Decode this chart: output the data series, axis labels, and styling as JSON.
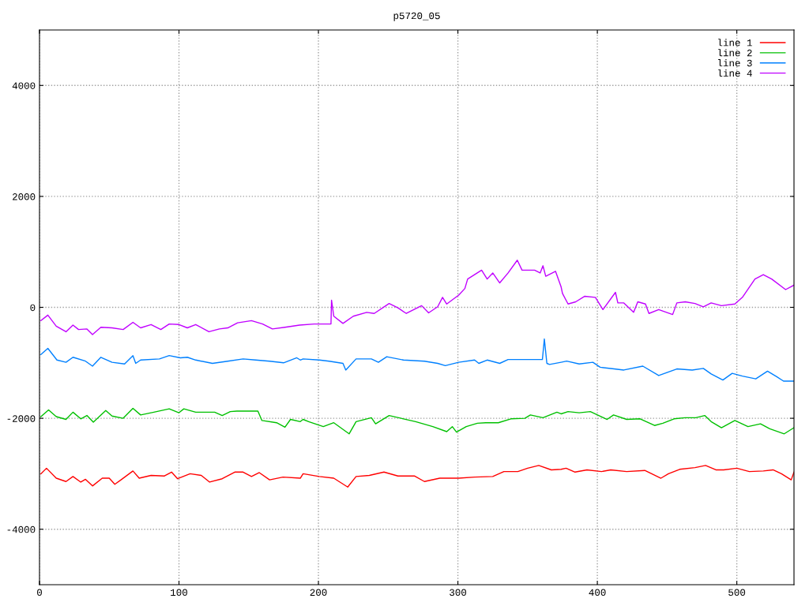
{
  "chart_data": {
    "type": "line",
    "title": "p5720_05",
    "xlim": [
      0,
      541
    ],
    "ylim": [
      -5000,
      5000
    ],
    "xticks": [
      0,
      100,
      200,
      300,
      400,
      500
    ],
    "yticks": [
      -4000,
      -2000,
      0,
      2000,
      4000
    ],
    "grid": true,
    "legend": "top right",
    "line_style": "solid",
    "marker": "none",
    "series": [
      {
        "name": "line 1",
        "color": "#ff0000",
        "x": [
          1,
          5,
          12,
          19,
          24,
          29.6,
          33,
          38,
          45,
          50,
          54,
          59,
          67,
          71.5,
          80,
          89.6,
          94.7,
          99,
          108,
          116,
          122,
          131,
          140,
          146,
          152,
          157.6,
          165,
          174.6,
          187,
          189,
          200.6,
          211,
          221,
          227,
          236.5,
          247,
          257,
          268.8,
          276,
          287,
          300.6,
          312,
          325,
          333,
          343,
          350,
          358,
          367,
          374,
          377.6,
          384,
          392.6,
          403,
          409.6,
          421,
          434,
          445.6,
          451,
          459,
          470,
          477.6,
          485,
          490.6,
          500,
          509,
          519,
          526,
          532,
          539,
          541
        ],
        "values": [
          -3000,
          -2900,
          -3080,
          -3140,
          -3050,
          -3150,
          -3100,
          -3220,
          -3080,
          -3080,
          -3190,
          -3100,
          -2950,
          -3080,
          -3030,
          -3040,
          -2970,
          -3090,
          -3000,
          -3030,
          -3150,
          -3090,
          -2970,
          -2970,
          -3050,
          -2980,
          -3110,
          -3060,
          -3080,
          -3000,
          -3050,
          -3080,
          -3240,
          -3050,
          -3030,
          -2970,
          -3040,
          -3040,
          -3140,
          -3080,
          -3080,
          -3060,
          -3050,
          -2960,
          -2960,
          -2900,
          -2850,
          -2930,
          -2920,
          -2900,
          -2970,
          -2930,
          -2960,
          -2930,
          -2960,
          -2940,
          -3080,
          -3000,
          -2920,
          -2890,
          -2850,
          -2930,
          -2930,
          -2900,
          -2960,
          -2950,
          -2930,
          -3000,
          -3110,
          -2970
        ]
      },
      {
        "name": "line 2",
        "color": "#00c000",
        "x": [
          1,
          6.5,
          12,
          19,
          24,
          29.6,
          34,
          38.6,
          47.5,
          52,
          60,
          67,
          72.5,
          82,
          93,
          100,
          103.5,
          112,
          125.6,
          131,
          136.8,
          141.5,
          156.6,
          159.5,
          170,
          176,
          180,
          187,
          189,
          193,
          203.5,
          211,
          222,
          227,
          238,
          241,
          250.7,
          261,
          269.7,
          282,
          292,
          296,
          299,
          306,
          314,
          320,
          329,
          338,
          348,
          352,
          361,
          371,
          374,
          379,
          387,
          395,
          407,
          411.6,
          421,
          430.7,
          441,
          447,
          455,
          463,
          470.6,
          477,
          481.6,
          489,
          498.6,
          508,
          517,
          523.6,
          534,
          541
        ],
        "values": [
          -1970,
          -1850,
          -1970,
          -2020,
          -1890,
          -2010,
          -1950,
          -2070,
          -1860,
          -1960,
          -2000,
          -1820,
          -1940,
          -1890,
          -1830,
          -1900,
          -1830,
          -1890,
          -1890,
          -1950,
          -1880,
          -1870,
          -1870,
          -2040,
          -2080,
          -2160,
          -2020,
          -2060,
          -2020,
          -2060,
          -2150,
          -2080,
          -2280,
          -2060,
          -1990,
          -2100,
          -1950,
          -2010,
          -2060,
          -2150,
          -2240,
          -2150,
          -2250,
          -2150,
          -2090,
          -2080,
          -2080,
          -2010,
          -2000,
          -1940,
          -1990,
          -1890,
          -1920,
          -1880,
          -1900,
          -1880,
          -2020,
          -1940,
          -2020,
          -2010,
          -2130,
          -2090,
          -2010,
          -1990,
          -1990,
          -1950,
          -2060,
          -2170,
          -2040,
          -2150,
          -2100,
          -2190,
          -2280,
          -2170
        ]
      },
      {
        "name": "line 3",
        "color": "#0080ff",
        "x": [
          1,
          6,
          12.5,
          19,
          24,
          33,
          38,
          44,
          52,
          61,
          67,
          69,
          72.5,
          86,
          93,
          101,
          106,
          112,
          124,
          135,
          146,
          155,
          165,
          175,
          184.5,
          187,
          189,
          200.6,
          207.7,
          217.6,
          219.6,
          227,
          238,
          243,
          249,
          261,
          276,
          285.5,
          291,
          300.6,
          312,
          315,
          321,
          330,
          336,
          360.6,
          362,
          363.8,
          365.7,
          374,
          378,
          387,
          396.8,
          402,
          412,
          419,
          432.6,
          444,
          457,
          468,
          476,
          481.6,
          490,
          496.7,
          504,
          513.6,
          522,
          528.6,
          533.5,
          541
        ],
        "values": [
          -850,
          -740,
          -950,
          -990,
          -900,
          -970,
          -1060,
          -900,
          -990,
          -1020,
          -870,
          -1010,
          -950,
          -930,
          -870,
          -910,
          -900,
          -950,
          -1010,
          -970,
          -930,
          -950,
          -970,
          -1000,
          -910,
          -950,
          -930,
          -950,
          -970,
          -1010,
          -1130,
          -930,
          -930,
          -990,
          -890,
          -950,
          -970,
          -1010,
          -1050,
          -990,
          -950,
          -1010,
          -950,
          -1010,
          -940,
          -940,
          -570,
          -1010,
          -1030,
          -990,
          -970,
          -1020,
          -990,
          -1080,
          -1110,
          -1130,
          -1060,
          -1230,
          -1110,
          -1130,
          -1100,
          -1200,
          -1310,
          -1190,
          -1240,
          -1290,
          -1150,
          -1250,
          -1330,
          -1330
        ]
      },
      {
        "name": "line 4",
        "color": "#c000ff",
        "x": [
          1,
          6,
          12,
          19,
          24,
          28,
          34,
          38,
          44,
          52,
          60,
          67,
          72.5,
          80,
          87,
          93,
          100,
          106,
          112,
          121.5,
          129,
          135,
          142,
          152,
          160,
          167,
          176,
          186.5,
          197,
          209,
          209.4,
          211,
          217.6,
          225,
          234.6,
          240,
          250.7,
          257,
          263,
          274,
          279,
          285.5,
          289,
          292,
          300.6,
          305,
          307,
          317,
          321,
          325,
          330,
          336,
          342.6,
          346,
          355,
          359,
          361,
          363,
          370,
          374,
          375,
          379,
          384.5,
          391,
          398.6,
          404,
          413,
          414.7,
          419,
          426,
          429,
          434.5,
          437,
          444,
          454,
          457,
          463,
          470,
          476,
          481.6,
          489,
          498.6,
          504,
          513,
          519,
          525,
          535,
          541
        ],
        "values": [
          -240,
          -140,
          -340,
          -440,
          -320,
          -400,
          -390,
          -490,
          -360,
          -370,
          -400,
          -270,
          -370,
          -310,
          -400,
          -300,
          -310,
          -370,
          -310,
          -440,
          -390,
          -370,
          -280,
          -240,
          -300,
          -390,
          -360,
          -320,
          -300,
          -300,
          130,
          -160,
          -290,
          -160,
          -90,
          -110,
          70,
          -10,
          -110,
          30,
          -100,
          10,
          180,
          60,
          220,
          340,
          510,
          670,
          510,
          620,
          440,
          620,
          850,
          670,
          670,
          620,
          750,
          560,
          650,
          370,
          250,
          60,
          100,
          200,
          180,
          -40,
          270,
          80,
          80,
          -90,
          100,
          60,
          -110,
          -40,
          -130,
          80,
          100,
          70,
          10,
          80,
          30,
          60,
          180,
          510,
          590,
          510,
          320,
          400
        ]
      }
    ]
  }
}
